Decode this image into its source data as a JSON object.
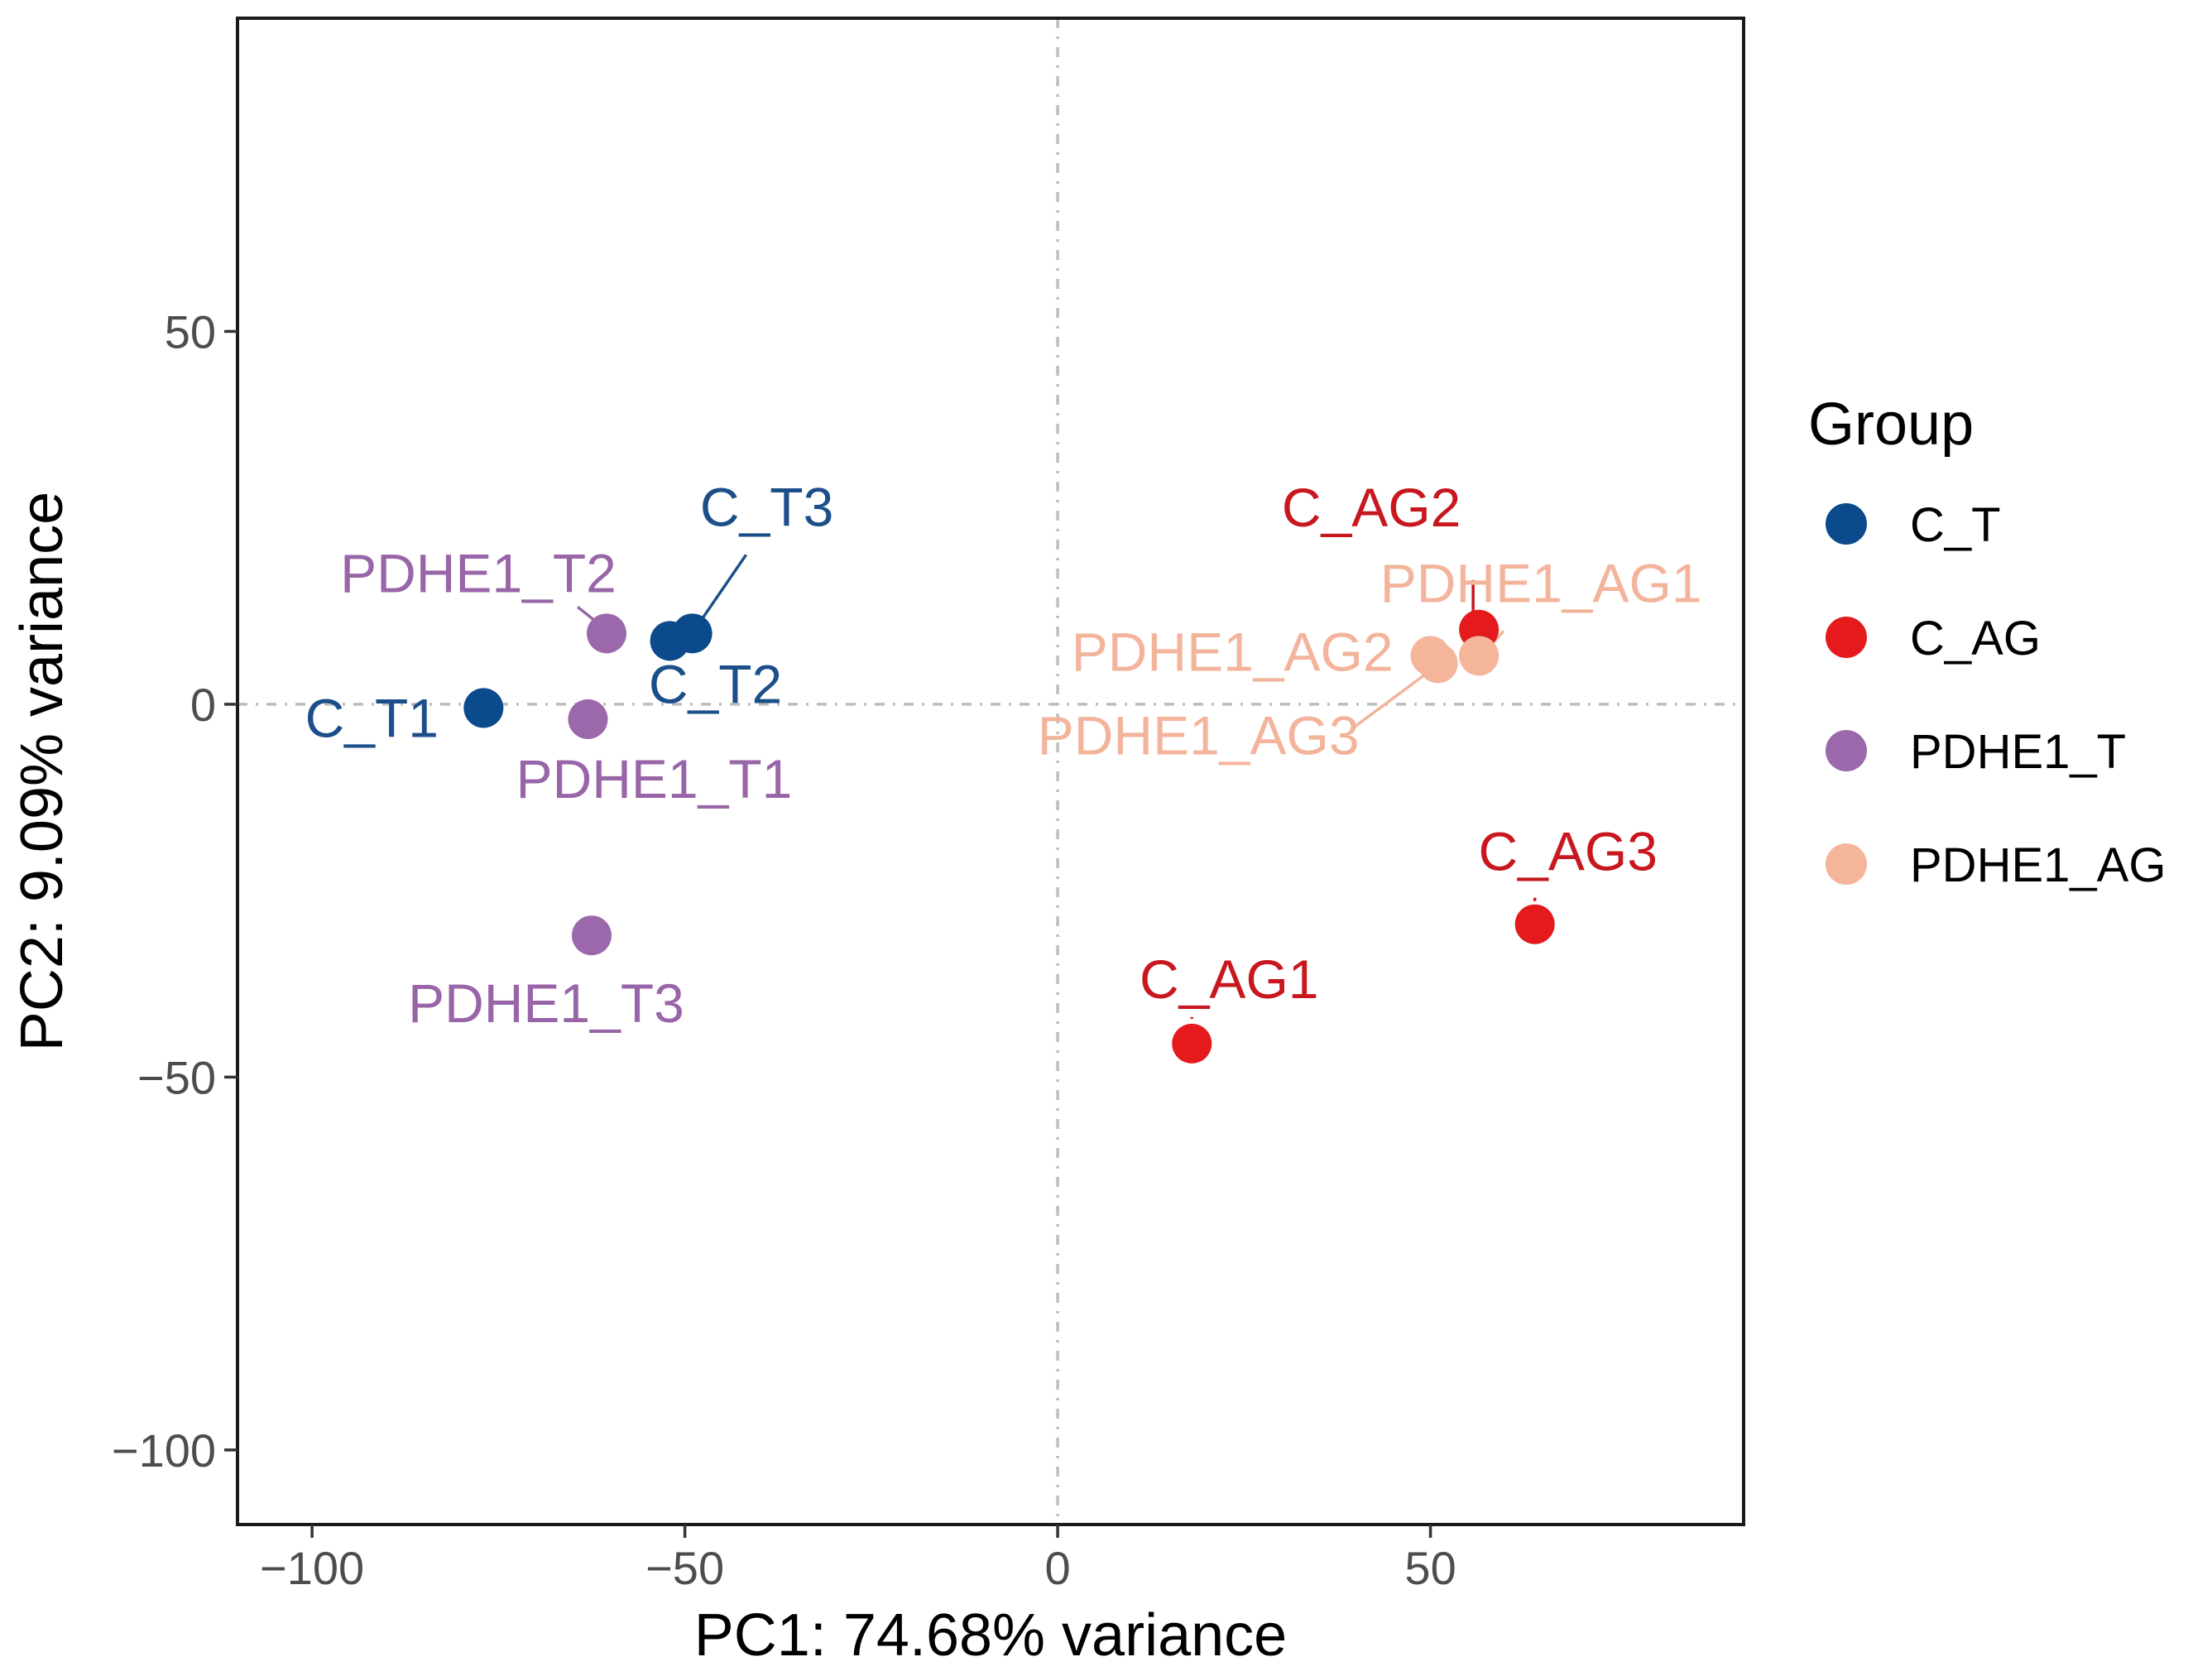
{
  "chart_data": {
    "type": "scatter",
    "title": "",
    "xlabel": "PC1: 74.68% variance",
    "ylabel": "PC2: 9.09% variance",
    "xlim": [
      -110,
      92
    ],
    "ylim": [
      -110,
      92
    ],
    "x_ticks": [
      -100,
      -50,
      0,
      50
    ],
    "y_ticks": [
      -100,
      -50,
      0,
      50
    ],
    "x_tick_labels": [
      "−100",
      "−50",
      "0",
      "50"
    ],
    "y_tick_labels": [
      "−100",
      "−50",
      "0",
      "50"
    ],
    "grid": false,
    "reference_lines": {
      "x": 0,
      "y": 0
    },
    "legend": {
      "title": "Group",
      "position": "right",
      "entries": [
        {
          "group": "C_T",
          "label": "C_T",
          "color": "#0b4a8b"
        },
        {
          "group": "C_AG",
          "label": "C_AG",
          "color": "#e41a1c"
        },
        {
          "group": "PDHE1_T",
          "label": "PDHE1_T",
          "color": "#9b68ab"
        },
        {
          "group": "PDHE1_AG",
          "label": "PDHE1_AG",
          "color": "#f4b59a"
        }
      ]
    },
    "label_colors": {
      "C_T": "#1c4f8a",
      "C_AG": "#c8171e",
      "PDHE1_T": "#9865a8",
      "PDHE1_AG": "#f3b49b"
    },
    "series": [
      {
        "name": "C_T",
        "points": [
          {
            "label": "C_T1",
            "x": -77,
            "y": -0.5
          },
          {
            "label": "C_T2",
            "x": -52,
            "y": 8.5
          },
          {
            "label": "C_T3",
            "x": -49,
            "y": 9.5
          }
        ]
      },
      {
        "name": "C_AG",
        "points": [
          {
            "label": "C_AG1",
            "x": 18,
            "y": -45.5
          },
          {
            "label": "C_AG2",
            "x": 56.5,
            "y": 10
          },
          {
            "label": "C_AG3",
            "x": 64,
            "y": -29.5
          }
        ]
      },
      {
        "name": "PDHE1_T",
        "points": [
          {
            "label": "PDHE1_T1",
            "x": -63,
            "y": -2
          },
          {
            "label": "PDHE1_T2",
            "x": -60.5,
            "y": 9.5
          },
          {
            "label": "PDHE1_T3",
            "x": -62.5,
            "y": -31
          }
        ]
      },
      {
        "name": "PDHE1_AG",
        "points": [
          {
            "label": "PDHE1_AG1",
            "x": 56.5,
            "y": 6.5
          },
          {
            "label": "PDHE1_AG2",
            "x": 50,
            "y": 6.5
          },
          {
            "label": "PDHE1_AG3",
            "x": 51,
            "y": 5.5
          }
        ]
      }
    ]
  }
}
